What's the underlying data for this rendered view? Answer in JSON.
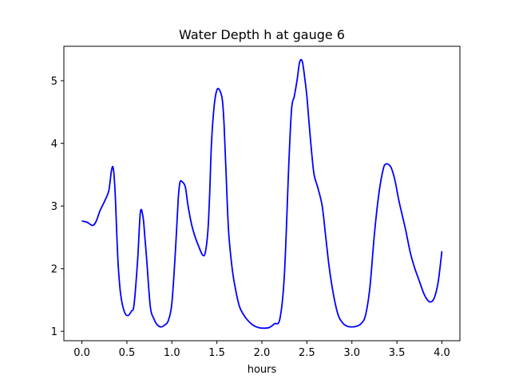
{
  "chart_data": {
    "type": "line",
    "title": "Water Depth h at gauge 6",
    "xlabel": "hours",
    "ylabel": "",
    "xlim": [
      -0.2,
      4.2
    ],
    "ylim": [
      0.85,
      5.55
    ],
    "xticks": [
      0.0,
      0.5,
      1.0,
      1.5,
      2.0,
      2.5,
      3.0,
      3.5,
      4.0
    ],
    "xtick_labels": [
      "0.0",
      "0.5",
      "1.0",
      "1.5",
      "2.0",
      "2.5",
      "3.0",
      "3.5",
      "4.0"
    ],
    "yticks": [
      1,
      2,
      3,
      4,
      5
    ],
    "ytick_labels": [
      "1",
      "2",
      "3",
      "4",
      "5"
    ],
    "grid": false,
    "series": [
      {
        "color": "#0000ff",
        "x": [
          0.0,
          0.06,
          0.12,
          0.16,
          0.2,
          0.26,
          0.3,
          0.33,
          0.35,
          0.37,
          0.4,
          0.43,
          0.47,
          0.51,
          0.55,
          0.58,
          0.62,
          0.65,
          0.68,
          0.7,
          0.72,
          0.76,
          0.8,
          0.84,
          0.88,
          0.92,
          0.96,
          1.0,
          1.04,
          1.07,
          1.09,
          1.12,
          1.15,
          1.18,
          1.22,
          1.26,
          1.3,
          1.34,
          1.37,
          1.4,
          1.42,
          1.44,
          1.47,
          1.5,
          1.53,
          1.56,
          1.58,
          1.6,
          1.63,
          1.67,
          1.71,
          1.75,
          1.79,
          1.84,
          1.9,
          1.96,
          2.02,
          2.08,
          2.14,
          2.2,
          2.25,
          2.3,
          2.33,
          2.36,
          2.39,
          2.42,
          2.45,
          2.48,
          2.5,
          2.52,
          2.55,
          2.58,
          2.62,
          2.67,
          2.71,
          2.75,
          2.8,
          2.85,
          2.9,
          2.95,
          3.0,
          3.05,
          3.1,
          3.15,
          3.2,
          3.25,
          3.3,
          3.35,
          3.38,
          3.41,
          3.44,
          3.48,
          3.52,
          3.56,
          3.6,
          3.65,
          3.7,
          3.75,
          3.8,
          3.84,
          3.88,
          3.92,
          3.96,
          4.0
        ],
        "y": [
          2.76,
          2.74,
          2.69,
          2.76,
          2.92,
          3.1,
          3.25,
          3.58,
          3.59,
          3.2,
          2.15,
          1.6,
          1.32,
          1.25,
          1.32,
          1.43,
          2.15,
          2.9,
          2.82,
          2.5,
          2.15,
          1.4,
          1.2,
          1.1,
          1.07,
          1.1,
          1.17,
          1.45,
          2.3,
          3.1,
          3.38,
          3.38,
          3.3,
          3.0,
          2.7,
          2.5,
          2.35,
          2.22,
          2.25,
          2.6,
          3.2,
          4.0,
          4.6,
          4.85,
          4.85,
          4.7,
          4.3,
          3.6,
          2.6,
          2.0,
          1.65,
          1.4,
          1.28,
          1.18,
          1.1,
          1.06,
          1.05,
          1.06,
          1.12,
          1.2,
          1.9,
          3.7,
          4.55,
          4.75,
          5.0,
          5.3,
          5.3,
          5.0,
          4.75,
          4.4,
          3.9,
          3.5,
          3.3,
          3.0,
          2.5,
          2.0,
          1.55,
          1.25,
          1.13,
          1.08,
          1.07,
          1.08,
          1.12,
          1.25,
          1.7,
          2.55,
          3.2,
          3.6,
          3.67,
          3.66,
          3.6,
          3.4,
          3.1,
          2.85,
          2.6,
          2.25,
          2.0,
          1.8,
          1.6,
          1.5,
          1.47,
          1.55,
          1.8,
          2.28
        ]
      }
    ]
  }
}
